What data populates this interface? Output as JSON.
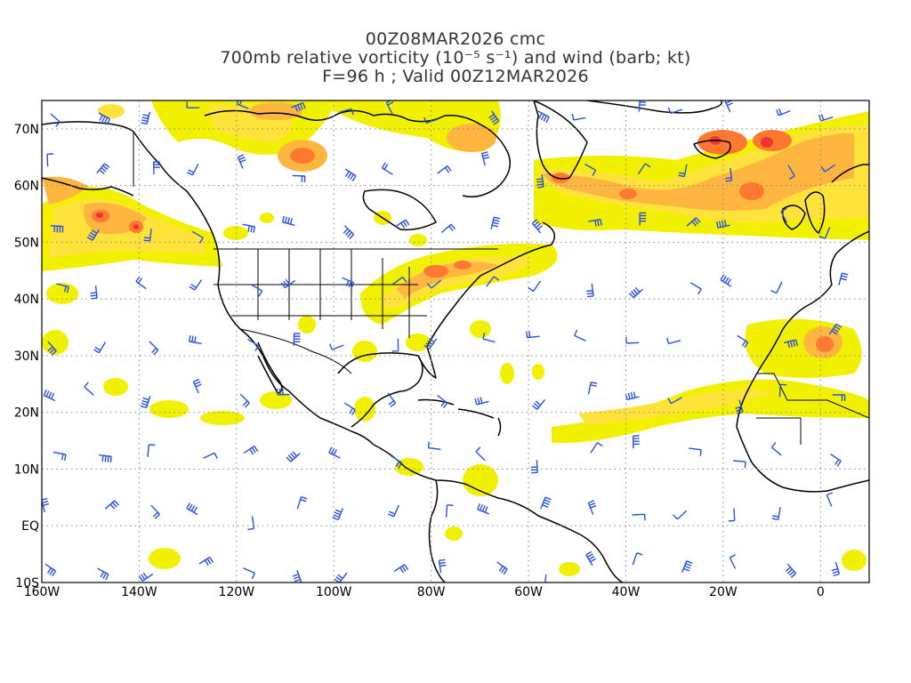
{
  "title": {
    "line1": "00Z08MAR2026 cmc",
    "line2": "700mb relative vorticity (10⁻⁵ s⁻¹) and wind (barb; kt)",
    "line3": "F=96 h ; Valid 00Z12MAR2026"
  },
  "map": {
    "lon_range": [
      -160,
      10
    ],
    "lat_range": [
      -10,
      75
    ],
    "x_ticks": [
      "160W",
      "140W",
      "120W",
      "100W",
      "80W",
      "60W",
      "40W",
      "20W",
      "0"
    ],
    "y_ticks": [
      "10S",
      "EQ",
      "10N",
      "20N",
      "30N",
      "40N",
      "50N",
      "60N",
      "70N"
    ],
    "grid": "dotted",
    "colors": {
      "shade_light": "#f0f000",
      "shade_yellow": "#ffe23a",
      "shade_orange": "#ffb640",
      "shade_deep": "#ff7a30",
      "shade_red": "#f03434",
      "barbs": "#2a50e0",
      "coastline": "#000000"
    }
  }
}
